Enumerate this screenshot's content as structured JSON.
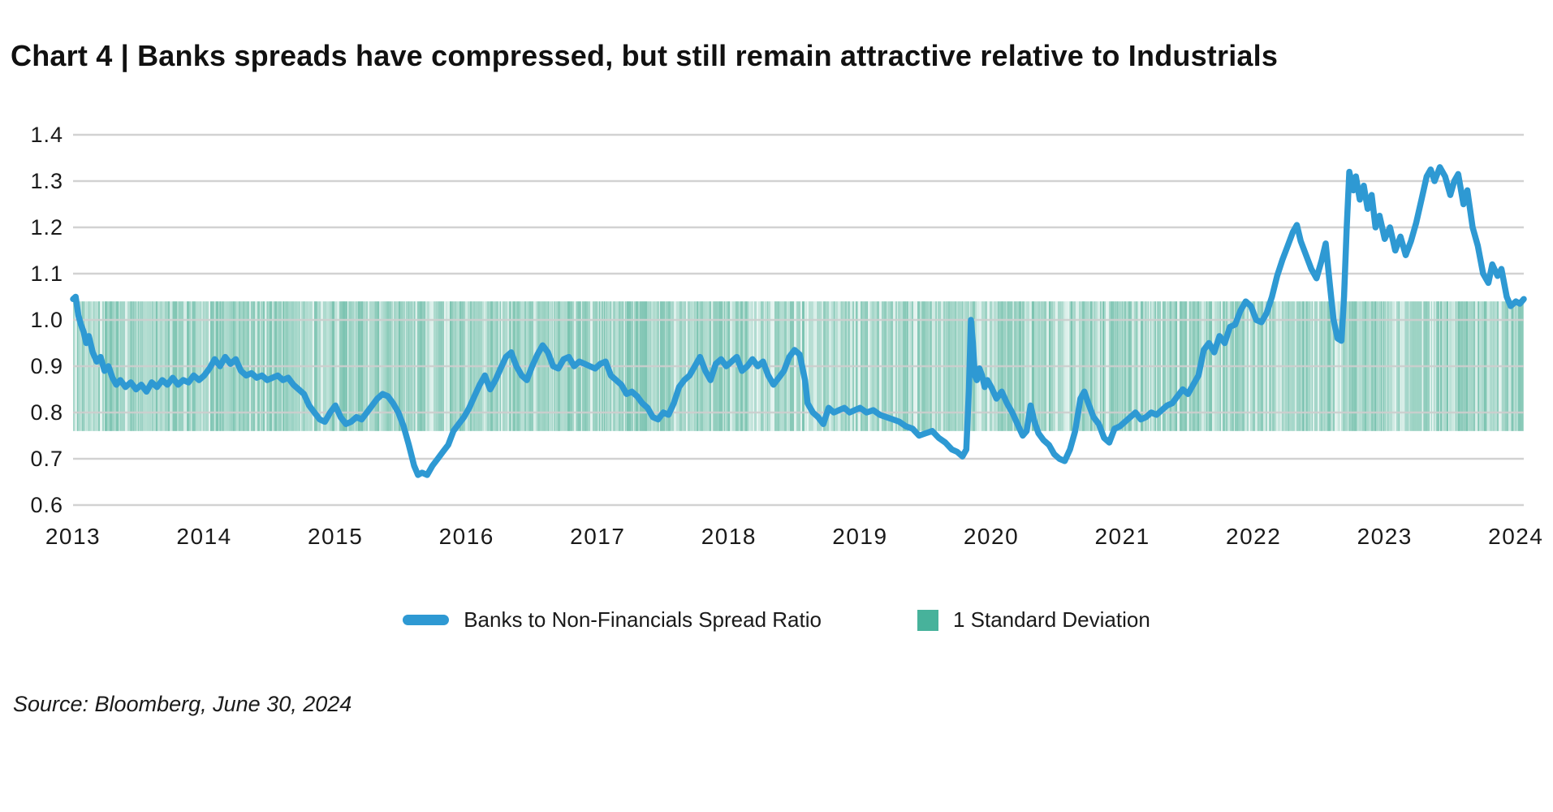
{
  "page": {
    "title": "Chart 4  |  Banks spreads have compressed, but still remain attractive relative to Industrials",
    "source": "Source: Bloomberg, June 30, 2024"
  },
  "colors": {
    "line": "#2E99D3",
    "band_solid": "#47B29B",
    "band_base": "#CBE8E0",
    "band_stripe": "#56B29A",
    "grid": "#CDCDCD",
    "text": "#1A1A1A"
  },
  "legend": {
    "items": [
      {
        "label": "Banks to Non-Financials Spread Ratio",
        "swatch": "line"
      },
      {
        "label": "1 Standard Deviation",
        "swatch": "square"
      }
    ]
  },
  "chart_data": {
    "type": "line",
    "title": "Banks to Non-Financials Spread Ratio vs 1 Standard Deviation band",
    "xlabel": "",
    "ylabel": "",
    "x_domain": [
      2013.0,
      2024.06
    ],
    "ylim": [
      0.6,
      1.4
    ],
    "yticks": [
      1.4,
      1.3,
      1.2,
      1.1,
      1.0,
      0.9,
      0.8,
      0.7,
      0.6
    ],
    "xticks": [
      2013,
      2014,
      2015,
      2016,
      2017,
      2018,
      2019,
      2020,
      2021,
      2022,
      2023,
      2024
    ],
    "grid": "horizontal-only",
    "legend_position": "bottom-center",
    "band": {
      "name": "1 Standard Deviation",
      "from": 0.76,
      "to": 1.04
    },
    "series": [
      {
        "name": "Banks to Non-Financials Spread Ratio",
        "points": [
          [
            2013.0,
            1.045
          ],
          [
            2013.02,
            1.05
          ],
          [
            2013.04,
            1.01
          ],
          [
            2013.06,
            0.99
          ],
          [
            2013.08,
            0.975
          ],
          [
            2013.1,
            0.95
          ],
          [
            2013.12,
            0.965
          ],
          [
            2013.15,
            0.93
          ],
          [
            2013.18,
            0.91
          ],
          [
            2013.21,
            0.92
          ],
          [
            2013.24,
            0.89
          ],
          [
            2013.27,
            0.9
          ],
          [
            2013.3,
            0.875
          ],
          [
            2013.33,
            0.86
          ],
          [
            2013.36,
            0.87
          ],
          [
            2013.4,
            0.855
          ],
          [
            2013.44,
            0.865
          ],
          [
            2013.48,
            0.85
          ],
          [
            2013.52,
            0.86
          ],
          [
            2013.56,
            0.845
          ],
          [
            2013.6,
            0.865
          ],
          [
            2013.64,
            0.855
          ],
          [
            2013.68,
            0.87
          ],
          [
            2013.72,
            0.86
          ],
          [
            2013.76,
            0.875
          ],
          [
            2013.8,
            0.86
          ],
          [
            2013.84,
            0.87
          ],
          [
            2013.88,
            0.865
          ],
          [
            2013.92,
            0.88
          ],
          [
            2013.96,
            0.87
          ],
          [
            2014.0,
            0.88
          ],
          [
            2014.04,
            0.895
          ],
          [
            2014.08,
            0.915
          ],
          [
            2014.12,
            0.9
          ],
          [
            2014.16,
            0.92
          ],
          [
            2014.2,
            0.905
          ],
          [
            2014.24,
            0.915
          ],
          [
            2014.28,
            0.89
          ],
          [
            2014.32,
            0.88
          ],
          [
            2014.36,
            0.885
          ],
          [
            2014.4,
            0.875
          ],
          [
            2014.44,
            0.88
          ],
          [
            2014.48,
            0.87
          ],
          [
            2014.52,
            0.875
          ],
          [
            2014.56,
            0.88
          ],
          [
            2014.6,
            0.87
          ],
          [
            2014.64,
            0.875
          ],
          [
            2014.68,
            0.86
          ],
          [
            2014.72,
            0.85
          ],
          [
            2014.76,
            0.84
          ],
          [
            2014.8,
            0.815
          ],
          [
            2014.84,
            0.8
          ],
          [
            2014.88,
            0.785
          ],
          [
            2014.92,
            0.78
          ],
          [
            2014.96,
            0.8
          ],
          [
            2015.0,
            0.815
          ],
          [
            2015.04,
            0.79
          ],
          [
            2015.08,
            0.775
          ],
          [
            2015.12,
            0.78
          ],
          [
            2015.16,
            0.79
          ],
          [
            2015.2,
            0.785
          ],
          [
            2015.24,
            0.8
          ],
          [
            2015.28,
            0.815
          ],
          [
            2015.32,
            0.83
          ],
          [
            2015.36,
            0.84
          ],
          [
            2015.4,
            0.835
          ],
          [
            2015.44,
            0.82
          ],
          [
            2015.48,
            0.8
          ],
          [
            2015.52,
            0.77
          ],
          [
            2015.56,
            0.73
          ],
          [
            2015.6,
            0.685
          ],
          [
            2015.63,
            0.665
          ],
          [
            2015.66,
            0.67
          ],
          [
            2015.7,
            0.665
          ],
          [
            2015.74,
            0.685
          ],
          [
            2015.78,
            0.7
          ],
          [
            2015.82,
            0.715
          ],
          [
            2015.86,
            0.73
          ],
          [
            2015.9,
            0.76
          ],
          [
            2015.94,
            0.775
          ],
          [
            2015.98,
            0.79
          ],
          [
            2016.02,
            0.81
          ],
          [
            2016.06,
            0.835
          ],
          [
            2016.1,
            0.86
          ],
          [
            2016.14,
            0.88
          ],
          [
            2016.18,
            0.85
          ],
          [
            2016.22,
            0.87
          ],
          [
            2016.26,
            0.895
          ],
          [
            2016.3,
            0.92
          ],
          [
            2016.34,
            0.93
          ],
          [
            2016.38,
            0.9
          ],
          [
            2016.42,
            0.88
          ],
          [
            2016.46,
            0.87
          ],
          [
            2016.5,
            0.9
          ],
          [
            2016.54,
            0.925
          ],
          [
            2016.58,
            0.945
          ],
          [
            2016.62,
            0.93
          ],
          [
            2016.66,
            0.9
          ],
          [
            2016.7,
            0.895
          ],
          [
            2016.74,
            0.915
          ],
          [
            2016.78,
            0.92
          ],
          [
            2016.82,
            0.9
          ],
          [
            2016.86,
            0.91
          ],
          [
            2016.9,
            0.905
          ],
          [
            2016.94,
            0.9
          ],
          [
            2016.98,
            0.895
          ],
          [
            2017.02,
            0.905
          ],
          [
            2017.06,
            0.91
          ],
          [
            2017.1,
            0.88
          ],
          [
            2017.14,
            0.87
          ],
          [
            2017.18,
            0.86
          ],
          [
            2017.22,
            0.84
          ],
          [
            2017.26,
            0.845
          ],
          [
            2017.3,
            0.835
          ],
          [
            2017.34,
            0.82
          ],
          [
            2017.38,
            0.81
          ],
          [
            2017.42,
            0.79
          ],
          [
            2017.46,
            0.785
          ],
          [
            2017.5,
            0.8
          ],
          [
            2017.54,
            0.795
          ],
          [
            2017.58,
            0.82
          ],
          [
            2017.62,
            0.855
          ],
          [
            2017.66,
            0.87
          ],
          [
            2017.7,
            0.88
          ],
          [
            2017.74,
            0.9
          ],
          [
            2017.78,
            0.92
          ],
          [
            2017.82,
            0.89
          ],
          [
            2017.86,
            0.87
          ],
          [
            2017.9,
            0.905
          ],
          [
            2017.94,
            0.915
          ],
          [
            2017.98,
            0.9
          ],
          [
            2018.02,
            0.91
          ],
          [
            2018.06,
            0.92
          ],
          [
            2018.1,
            0.89
          ],
          [
            2018.14,
            0.9
          ],
          [
            2018.18,
            0.915
          ],
          [
            2018.22,
            0.9
          ],
          [
            2018.26,
            0.91
          ],
          [
            2018.3,
            0.88
          ],
          [
            2018.34,
            0.86
          ],
          [
            2018.38,
            0.875
          ],
          [
            2018.42,
            0.89
          ],
          [
            2018.46,
            0.92
          ],
          [
            2018.5,
            0.935
          ],
          [
            2018.54,
            0.925
          ],
          [
            2018.58,
            0.87
          ],
          [
            2018.6,
            0.82
          ],
          [
            2018.64,
            0.8
          ],
          [
            2018.68,
            0.79
          ],
          [
            2018.72,
            0.775
          ],
          [
            2018.76,
            0.81
          ],
          [
            2018.8,
            0.8
          ],
          [
            2018.84,
            0.805
          ],
          [
            2018.88,
            0.81
          ],
          [
            2018.92,
            0.8
          ],
          [
            2018.96,
            0.805
          ],
          [
            2019.0,
            0.81
          ],
          [
            2019.05,
            0.8
          ],
          [
            2019.1,
            0.805
          ],
          [
            2019.15,
            0.795
          ],
          [
            2019.2,
            0.79
          ],
          [
            2019.25,
            0.785
          ],
          [
            2019.3,
            0.78
          ],
          [
            2019.35,
            0.77
          ],
          [
            2019.4,
            0.765
          ],
          [
            2019.45,
            0.75
          ],
          [
            2019.5,
            0.755
          ],
          [
            2019.55,
            0.76
          ],
          [
            2019.6,
            0.745
          ],
          [
            2019.65,
            0.735
          ],
          [
            2019.7,
            0.72
          ],
          [
            2019.74,
            0.715
          ],
          [
            2019.78,
            0.705
          ],
          [
            2019.81,
            0.72
          ],
          [
            2019.83,
            0.85
          ],
          [
            2019.845,
            1.0
          ],
          [
            2019.86,
            0.95
          ],
          [
            2019.875,
            0.88
          ],
          [
            2019.89,
            0.87
          ],
          [
            2019.91,
            0.895
          ],
          [
            2019.93,
            0.88
          ],
          [
            2019.95,
            0.855
          ],
          [
            2019.97,
            0.87
          ],
          [
            2020.0,
            0.855
          ],
          [
            2020.04,
            0.83
          ],
          [
            2020.08,
            0.845
          ],
          [
            2020.12,
            0.82
          ],
          [
            2020.16,
            0.8
          ],
          [
            2020.2,
            0.775
          ],
          [
            2020.24,
            0.75
          ],
          [
            2020.27,
            0.76
          ],
          [
            2020.3,
            0.815
          ],
          [
            2020.33,
            0.78
          ],
          [
            2020.36,
            0.755
          ],
          [
            2020.4,
            0.74
          ],
          [
            2020.44,
            0.73
          ],
          [
            2020.48,
            0.71
          ],
          [
            2020.52,
            0.7
          ],
          [
            2020.56,
            0.695
          ],
          [
            2020.6,
            0.72
          ],
          [
            2020.64,
            0.76
          ],
          [
            2020.68,
            0.83
          ],
          [
            2020.71,
            0.845
          ],
          [
            2020.74,
            0.82
          ],
          [
            2020.78,
            0.79
          ],
          [
            2020.82,
            0.775
          ],
          [
            2020.86,
            0.745
          ],
          [
            2020.9,
            0.735
          ],
          [
            2020.94,
            0.765
          ],
          [
            2020.98,
            0.77
          ],
          [
            2021.02,
            0.78
          ],
          [
            2021.06,
            0.79
          ],
          [
            2021.1,
            0.8
          ],
          [
            2021.14,
            0.785
          ],
          [
            2021.18,
            0.79
          ],
          [
            2021.22,
            0.8
          ],
          [
            2021.26,
            0.795
          ],
          [
            2021.3,
            0.805
          ],
          [
            2021.34,
            0.815
          ],
          [
            2021.38,
            0.82
          ],
          [
            2021.42,
            0.835
          ],
          [
            2021.46,
            0.85
          ],
          [
            2021.5,
            0.84
          ],
          [
            2021.54,
            0.86
          ],
          [
            2021.58,
            0.88
          ],
          [
            2021.62,
            0.935
          ],
          [
            2021.66,
            0.95
          ],
          [
            2021.7,
            0.93
          ],
          [
            2021.74,
            0.965
          ],
          [
            2021.78,
            0.95
          ],
          [
            2021.82,
            0.985
          ],
          [
            2021.86,
            0.99
          ],
          [
            2021.9,
            1.02
          ],
          [
            2021.94,
            1.04
          ],
          [
            2021.98,
            1.03
          ],
          [
            2022.02,
            1.0
          ],
          [
            2022.06,
            0.995
          ],
          [
            2022.1,
            1.015
          ],
          [
            2022.14,
            1.05
          ],
          [
            2022.18,
            1.095
          ],
          [
            2022.22,
            1.13
          ],
          [
            2022.26,
            1.16
          ],
          [
            2022.3,
            1.19
          ],
          [
            2022.33,
            1.205
          ],
          [
            2022.36,
            1.17
          ],
          [
            2022.4,
            1.14
          ],
          [
            2022.44,
            1.11
          ],
          [
            2022.48,
            1.09
          ],
          [
            2022.52,
            1.13
          ],
          [
            2022.55,
            1.165
          ],
          [
            2022.58,
            1.08
          ],
          [
            2022.61,
            1.0
          ],
          [
            2022.64,
            0.96
          ],
          [
            2022.67,
            0.955
          ],
          [
            2022.69,
            1.05
          ],
          [
            2022.71,
            1.2
          ],
          [
            2022.73,
            1.32
          ],
          [
            2022.76,
            1.28
          ],
          [
            2022.78,
            1.31
          ],
          [
            2022.81,
            1.26
          ],
          [
            2022.84,
            1.29
          ],
          [
            2022.87,
            1.24
          ],
          [
            2022.9,
            1.27
          ],
          [
            2022.93,
            1.2
          ],
          [
            2022.96,
            1.225
          ],
          [
            2023.0,
            1.175
          ],
          [
            2023.04,
            1.2
          ],
          [
            2023.08,
            1.15
          ],
          [
            2023.12,
            1.18
          ],
          [
            2023.16,
            1.14
          ],
          [
            2023.2,
            1.17
          ],
          [
            2023.24,
            1.21
          ],
          [
            2023.28,
            1.26
          ],
          [
            2023.32,
            1.31
          ],
          [
            2023.35,
            1.325
          ],
          [
            2023.38,
            1.3
          ],
          [
            2023.42,
            1.33
          ],
          [
            2023.46,
            1.31
          ],
          [
            2023.5,
            1.27
          ],
          [
            2023.53,
            1.3
          ],
          [
            2023.56,
            1.315
          ],
          [
            2023.6,
            1.25
          ],
          [
            2023.63,
            1.28
          ],
          [
            2023.67,
            1.2
          ],
          [
            2023.71,
            1.16
          ],
          [
            2023.75,
            1.1
          ],
          [
            2023.79,
            1.08
          ],
          [
            2023.82,
            1.12
          ],
          [
            2023.86,
            1.095
          ],
          [
            2023.89,
            1.11
          ],
          [
            2023.93,
            1.05
          ],
          [
            2023.96,
            1.03
          ],
          [
            2024.0,
            1.04
          ],
          [
            2024.03,
            1.035
          ],
          [
            2024.06,
            1.045
          ]
        ]
      }
    ]
  }
}
